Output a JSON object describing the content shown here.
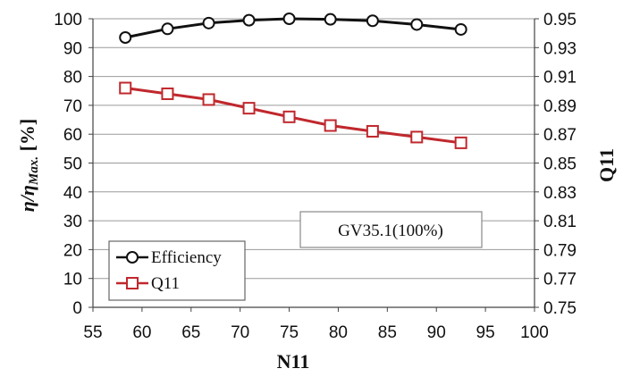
{
  "chart_data": {
    "type": "line",
    "title": "",
    "xlabel": "N11",
    "ylabel_left": "η/ηMax. [%]",
    "ylabel_left_main": "η/η",
    "ylabel_left_sub": "Max.",
    "ylabel_left_tail": " [%]",
    "ylabel_right": "Q11",
    "xlim": [
      55,
      100
    ],
    "ylim_left": [
      0,
      100
    ],
    "ylim_right": [
      0.75,
      0.95
    ],
    "x_ticks": [
      "55",
      "60",
      "65",
      "70",
      "75",
      "80",
      "85",
      "90",
      "95",
      "100"
    ],
    "y_left_ticks": [
      "0",
      "10",
      "20",
      "30",
      "40",
      "50",
      "60",
      "70",
      "80",
      "90",
      "100"
    ],
    "y_right_ticks": [
      "0.75",
      "0.77",
      "0.79",
      "0.81",
      "0.83",
      "0.85",
      "0.87",
      "0.89",
      "0.91",
      "0.93",
      "0.95"
    ],
    "grid": "horizontal",
    "legend_position": "bottom-left",
    "annotation": "GV35.1(100%)",
    "series": [
      {
        "name": "Efficiency",
        "axis": "left",
        "color": "#111111",
        "marker": "circle",
        "x": [
          58.3,
          62.6,
          66.8,
          70.9,
          75.0,
          79.2,
          83.5,
          88.0,
          92.5
        ],
        "y": [
          93.5,
          96.5,
          98.5,
          99.5,
          100.0,
          99.8,
          99.3,
          98.0,
          96.3
        ]
      },
      {
        "name": "Q11",
        "axis": "right",
        "color": "#c0282d",
        "marker": "square",
        "x": [
          58.3,
          62.6,
          66.8,
          70.9,
          75.0,
          79.2,
          83.5,
          88.0,
          92.5
        ],
        "y": [
          0.902,
          0.898,
          0.894,
          0.888,
          0.882,
          0.876,
          0.872,
          0.868,
          0.864
        ]
      }
    ]
  }
}
